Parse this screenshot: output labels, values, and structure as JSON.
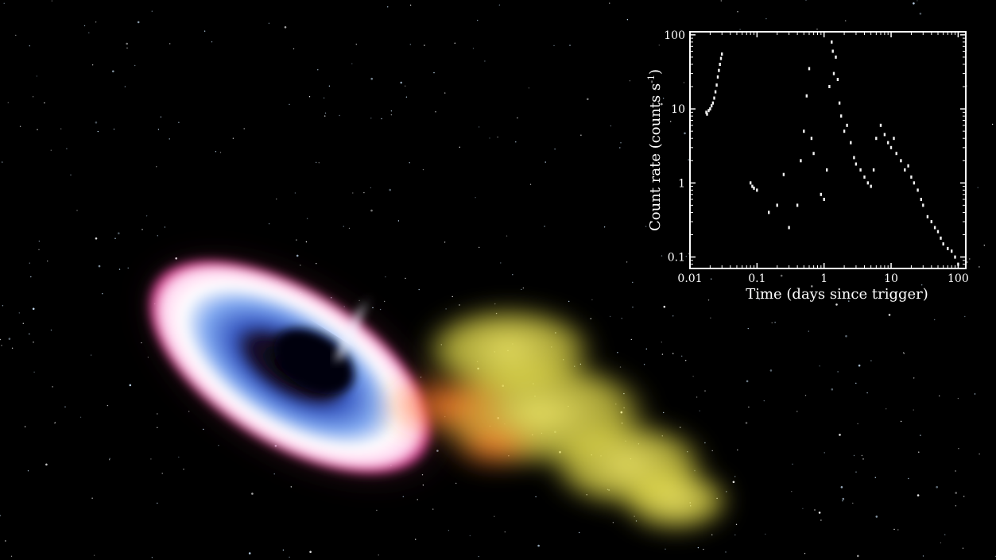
{
  "colors": {
    "background": "#000000",
    "axis": "#ffffff",
    "data": "#f2f2f2",
    "disk_inner": "#ffffff",
    "disk_blue": "#4a7be0",
    "disk_rim": "#e0479a",
    "outflow": "#e8e04a",
    "outflow_hot": "#f07a2a"
  },
  "chart_data": {
    "type": "scatter",
    "title": "",
    "xlabel": "Time (days since trigger)",
    "ylabel_main": "Count rate (counts s",
    "ylabel_sup": "-1",
    "ylabel_close": ")",
    "x_scale": "log",
    "y_scale": "log",
    "xlim": [
      0.01,
      130
    ],
    "ylim": [
      0.07,
      110
    ],
    "grid": false,
    "legend": "none",
    "x_ticks": [
      {
        "value": 0.01,
        "label": "0.01"
      },
      {
        "value": 0.1,
        "label": "0.1"
      },
      {
        "value": 1,
        "label": "1"
      },
      {
        "value": 10,
        "label": "10"
      },
      {
        "value": 100,
        "label": "100"
      }
    ],
    "y_ticks": [
      {
        "value": 0.1,
        "label": "0.1"
      },
      {
        "value": 1,
        "label": "1"
      },
      {
        "value": 10,
        "label": "10"
      },
      {
        "value": 100,
        "label": "100"
      }
    ],
    "series": [
      {
        "x": [
          0.0175,
          0.018,
          0.019,
          0.02,
          0.021,
          0.022,
          0.023,
          0.024,
          0.025,
          0.026,
          0.027,
          0.028,
          0.029,
          0.03,
          0.08,
          0.085,
          0.09,
          0.1,
          0.15,
          0.2,
          0.25,
          0.3,
          0.4,
          0.45,
          0.5,
          0.55,
          0.6,
          0.65,
          0.7,
          0.9,
          1.0,
          1.1,
          1.2,
          1.3,
          1.35,
          1.4,
          1.5,
          1.6,
          1.7,
          1.8,
          2.0,
          2.2,
          2.5,
          2.8,
          3.0,
          3.5,
          4.0,
          4.5,
          5.0,
          5.5,
          6.0,
          7.0,
          8.0,
          9.0,
          10.0,
          11.0,
          12.0,
          14.0,
          16.0,
          18.0,
          20.0,
          22.0,
          25.0,
          28.0,
          30.0,
          35.0,
          40.0,
          45.0,
          50.0,
          55.0,
          60.0,
          70.0,
          80.0,
          90.0,
          100.0
        ],
        "y": [
          9.0,
          8.5,
          9.5,
          10.0,
          11.0,
          12.0,
          14.0,
          17.0,
          21.0,
          27.0,
          33.0,
          40.0,
          48.0,
          55.0,
          1.0,
          0.9,
          0.85,
          0.8,
          0.4,
          0.5,
          1.3,
          0.25,
          0.5,
          2.0,
          5.0,
          15.0,
          35.0,
          4.0,
          2.5,
          0.7,
          0.6,
          1.5,
          20.0,
          80.0,
          60.0,
          30.0,
          50.0,
          25.0,
          12.0,
          8.0,
          5.0,
          6.0,
          3.5,
          2.2,
          1.8,
          1.5,
          1.2,
          1.0,
          0.9,
          1.5,
          4.0,
          6.0,
          4.5,
          3.5,
          3.0,
          4.0,
          2.5,
          2.0,
          1.5,
          1.7,
          1.2,
          1.0,
          0.8,
          0.6,
          0.5,
          0.35,
          0.3,
          0.25,
          0.22,
          0.18,
          0.15,
          0.13,
          0.12,
          0.1,
          0.08
        ]
      }
    ]
  }
}
